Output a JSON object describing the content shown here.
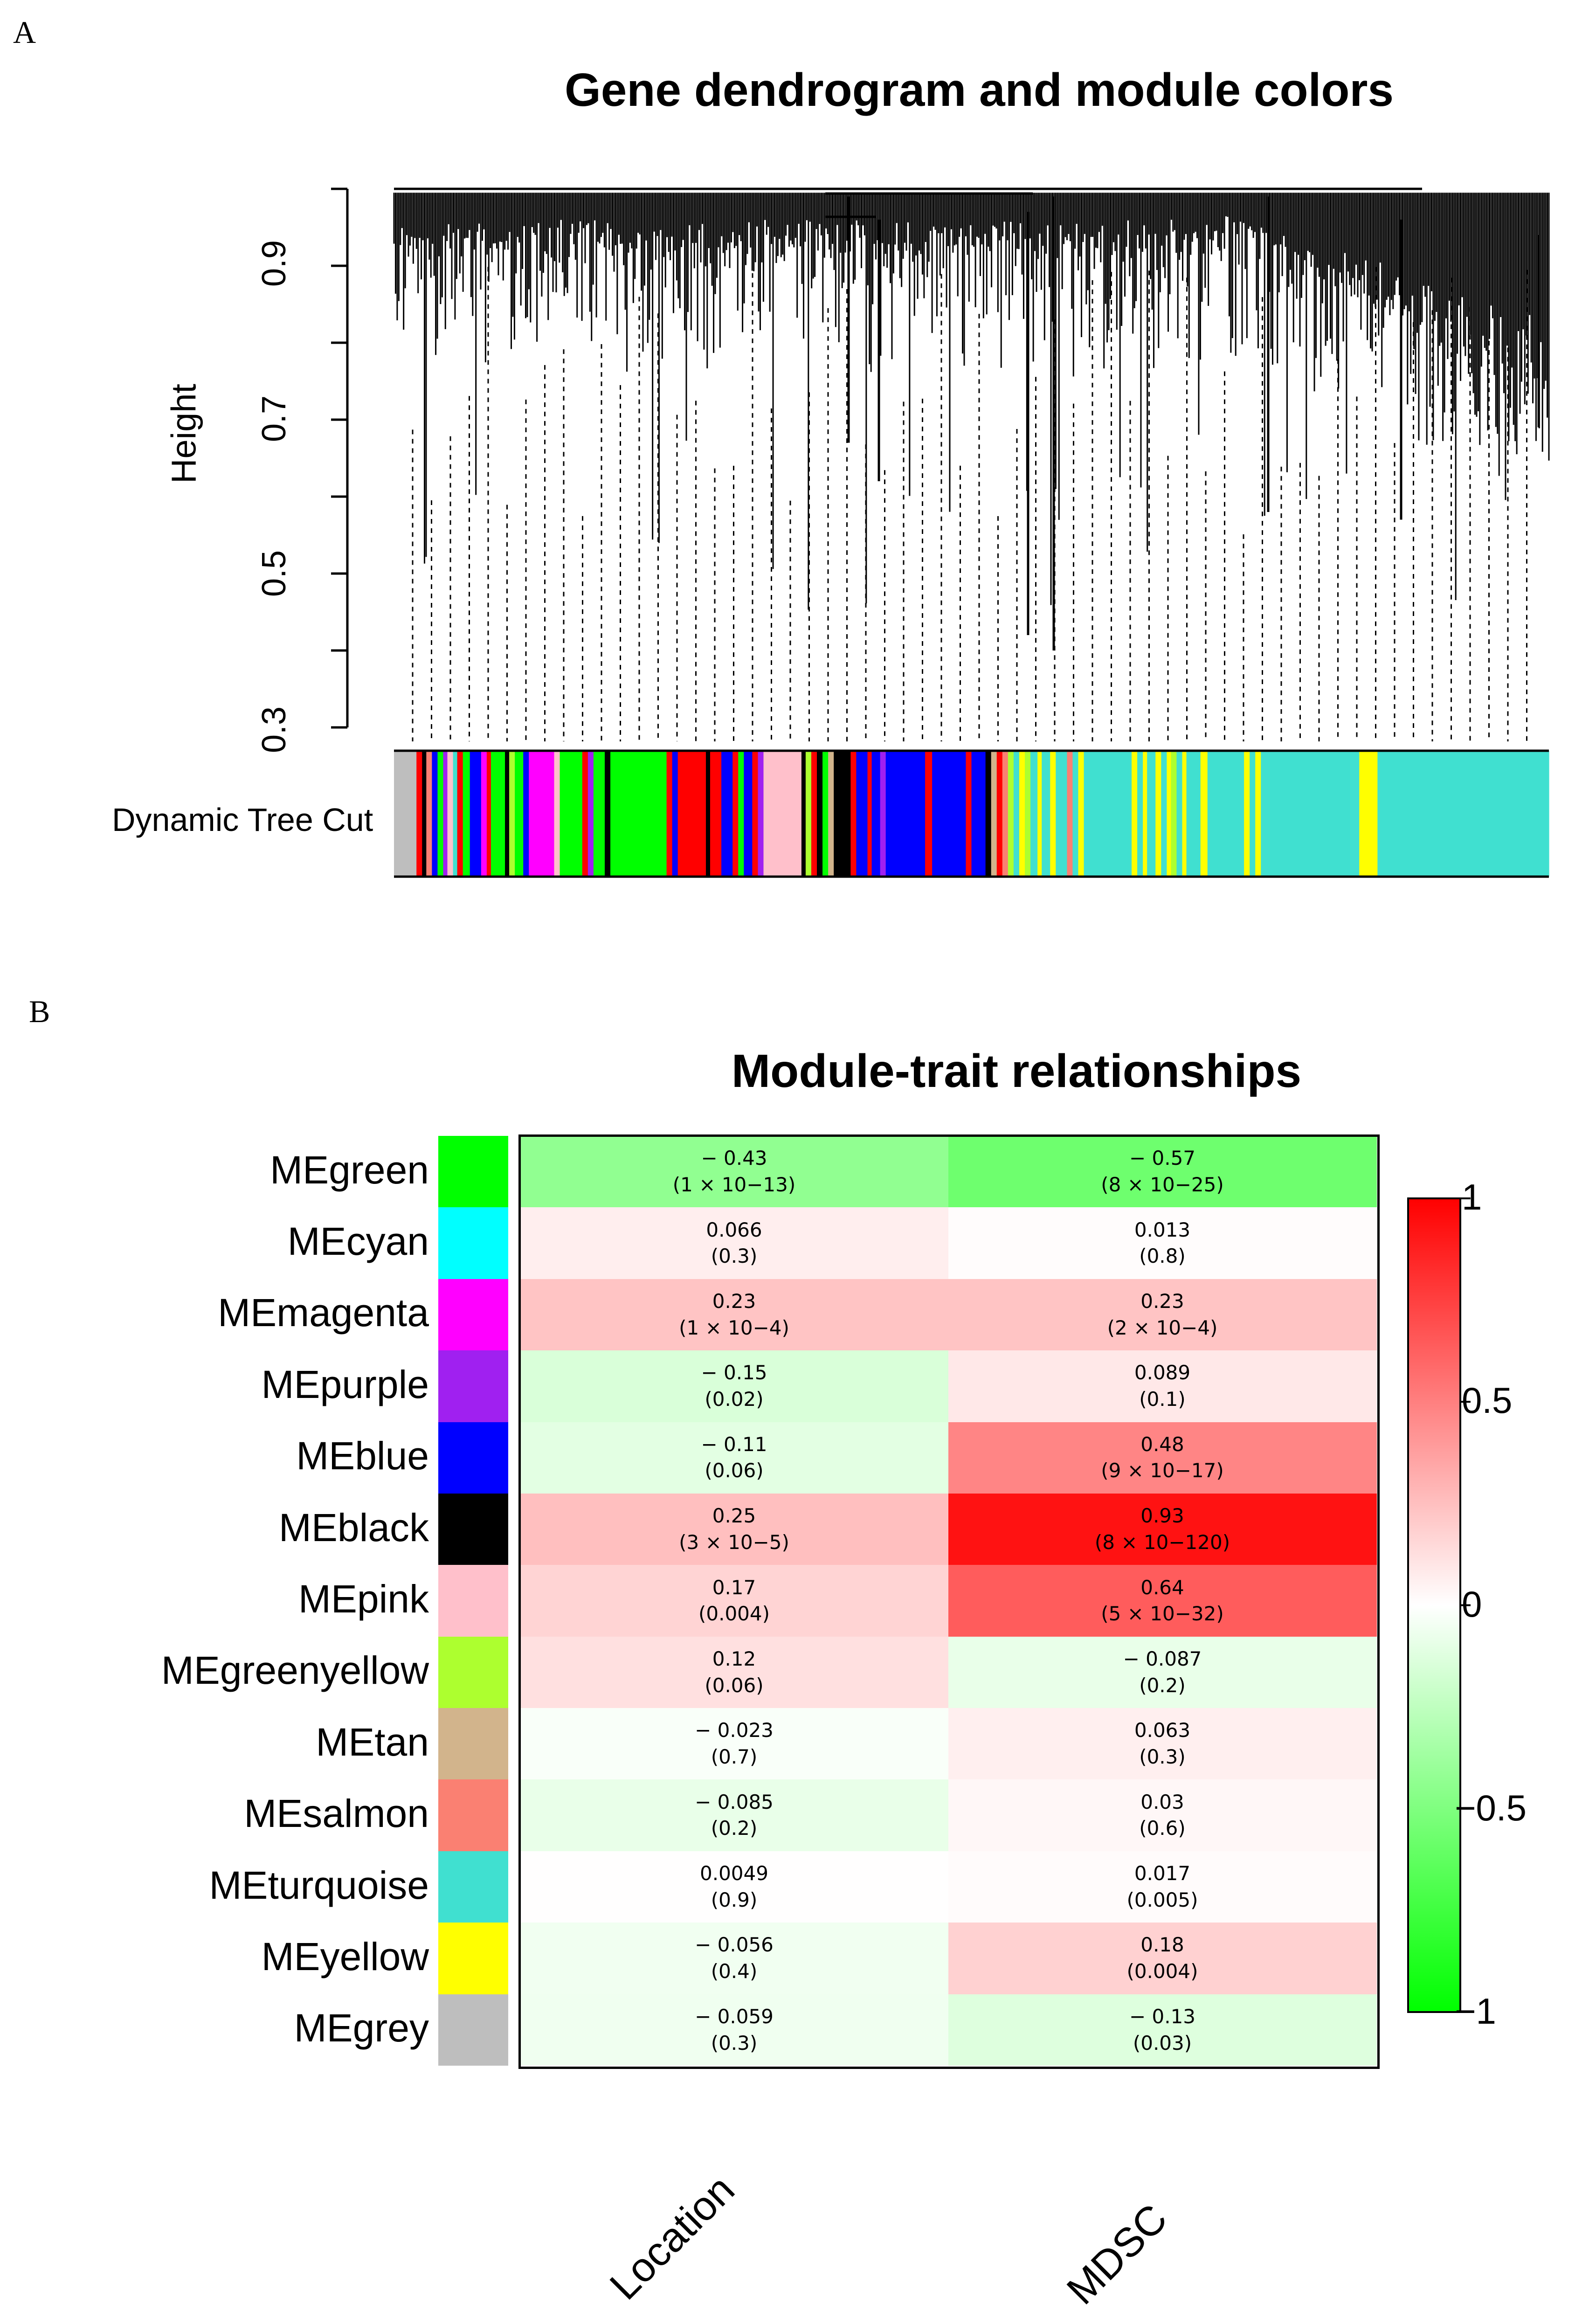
{
  "chart_data": [
    {
      "panel_label": "A",
      "type": "dendrogram",
      "title": "Gene dendrogram and module colors",
      "ylabel": "Height",
      "yticks": [
        0.3,
        0.5,
        0.7,
        0.9
      ],
      "ylim": [
        0.3,
        1.0
      ],
      "color_bar_label": "Dynamic Tree Cut",
      "color_bar_segments": [
        {
          "color": "#bebebe",
          "width": 0.016
        },
        {
          "color": "#ff0000",
          "width": 0.004
        },
        {
          "color": "#000000",
          "width": 0.003
        },
        {
          "color": "#fa8072",
          "width": 0.004
        },
        {
          "color": "#0000ff",
          "width": 0.004
        },
        {
          "color": "#00ff00",
          "width": 0.004
        },
        {
          "color": "#a020f0",
          "width": 0.003
        },
        {
          "color": "#ffc0cb",
          "width": 0.004
        },
        {
          "color": "#40e0d0",
          "width": 0.003
        },
        {
          "color": "#ff0000",
          "width": 0.004
        },
        {
          "color": "#00ff00",
          "width": 0.005
        },
        {
          "color": "#0000ff",
          "width": 0.008
        },
        {
          "color": "#ff00ff",
          "width": 0.004
        },
        {
          "color": "#ff0000",
          "width": 0.003
        },
        {
          "color": "#00ff00",
          "width": 0.01
        },
        {
          "color": "#000000",
          "width": 0.003
        },
        {
          "color": "#adff2f",
          "width": 0.004
        },
        {
          "color": "#00ff00",
          "width": 0.006
        },
        {
          "color": "#0000ff",
          "width": 0.004
        },
        {
          "color": "#ff00ff",
          "width": 0.018
        },
        {
          "color": "#ffc0cb",
          "width": 0.004
        },
        {
          "color": "#00ff00",
          "width": 0.016
        },
        {
          "color": "#ff0000",
          "width": 0.004
        },
        {
          "color": "#a020f0",
          "width": 0.004
        },
        {
          "color": "#00ff00",
          "width": 0.008
        },
        {
          "color": "#000000",
          "width": 0.004
        },
        {
          "color": "#00ff00",
          "width": 0.04
        },
        {
          "color": "#ff0000",
          "width": 0.004
        },
        {
          "color": "#0000ff",
          "width": 0.004
        },
        {
          "color": "#ff0000",
          "width": 0.02
        },
        {
          "color": "#000000",
          "width": 0.003
        },
        {
          "color": "#ff0000",
          "width": 0.008
        },
        {
          "color": "#0000ff",
          "width": 0.008
        },
        {
          "color": "#ff0000",
          "width": 0.004
        },
        {
          "color": "#00ff00",
          "width": 0.004
        },
        {
          "color": "#0000ff",
          "width": 0.006
        },
        {
          "color": "#ff0000",
          "width": 0.004
        },
        {
          "color": "#a020f0",
          "width": 0.004
        },
        {
          "color": "#ffc0cb",
          "width": 0.027
        },
        {
          "color": "#000000",
          "width": 0.003
        },
        {
          "color": "#adff2f",
          "width": 0.004
        },
        {
          "color": "#ff0000",
          "width": 0.004
        },
        {
          "color": "#000000",
          "width": 0.004
        },
        {
          "color": "#00ff00",
          "width": 0.004
        },
        {
          "color": "#d2b48c",
          "width": 0.004
        },
        {
          "color": "#000000",
          "width": 0.012
        },
        {
          "color": "#ff0000",
          "width": 0.004
        },
        {
          "color": "#0000ff",
          "width": 0.008
        },
        {
          "color": "#ff0000",
          "width": 0.003
        },
        {
          "color": "#0000ff",
          "width": 0.006
        },
        {
          "color": "#a020f0",
          "width": 0.004
        },
        {
          "color": "#0000ff",
          "width": 0.028
        },
        {
          "color": "#ff0000",
          "width": 0.005
        },
        {
          "color": "#0000ff",
          "width": 0.024
        },
        {
          "color": "#ff0000",
          "width": 0.004
        },
        {
          "color": "#0000ff",
          "width": 0.01
        },
        {
          "color": "#000000",
          "width": 0.004
        },
        {
          "color": "#d2b48c",
          "width": 0.004
        },
        {
          "color": "#ff0000",
          "width": 0.004
        },
        {
          "color": "#fa8072",
          "width": 0.004
        },
        {
          "color": "#adff2f",
          "width": 0.004
        },
        {
          "color": "#40e0d0",
          "width": 0.004
        },
        {
          "color": "#ffff00",
          "width": 0.004
        },
        {
          "color": "#adff2f",
          "width": 0.004
        },
        {
          "color": "#40e0d0",
          "width": 0.005
        },
        {
          "color": "#ffff00",
          "width": 0.003
        },
        {
          "color": "#40e0d0",
          "width": 0.006
        },
        {
          "color": "#ffff00",
          "width": 0.004
        },
        {
          "color": "#40e0d0",
          "width": 0.008
        },
        {
          "color": "#fa8072",
          "width": 0.004
        },
        {
          "color": "#40e0d0",
          "width": 0.004
        },
        {
          "color": "#ffff00",
          "width": 0.004
        },
        {
          "color": "#40e0d0",
          "width": 0.034
        },
        {
          "color": "#ffff00",
          "width": 0.004
        },
        {
          "color": "#40e0d0",
          "width": 0.004
        },
        {
          "color": "#ffff00",
          "width": 0.003
        },
        {
          "color": "#40e0d0",
          "width": 0.006
        },
        {
          "color": "#ffff00",
          "width": 0.004
        },
        {
          "color": "#40e0d0",
          "width": 0.004
        },
        {
          "color": "#ffff00",
          "width": 0.003
        },
        {
          "color": "#adff2f",
          "width": 0.004
        },
        {
          "color": "#40e0d0",
          "width": 0.004
        },
        {
          "color": "#ffff00",
          "width": 0.003
        },
        {
          "color": "#40e0d0",
          "width": 0.01
        },
        {
          "color": "#ffff00",
          "width": 0.005
        },
        {
          "color": "#40e0d0",
          "width": 0.026
        },
        {
          "color": "#ffff00",
          "width": 0.004
        },
        {
          "color": "#40e0d0",
          "width": 0.004
        },
        {
          "color": "#ffff00",
          "width": 0.004
        },
        {
          "color": "#40e0d0",
          "width": 0.07
        },
        {
          "color": "#ffff00",
          "width": 0.013
        },
        {
          "color": "#40e0d0",
          "width": 0.122
        }
      ]
    },
    {
      "panel_label": "B",
      "type": "heatmap",
      "title": "Module-trait relationships",
      "columns": [
        "Location",
        "MDSC"
      ],
      "rows": [
        {
          "name": "MEgreen",
          "swatch": "#00ff00",
          "values": [
            -0.43,
            -0.57
          ],
          "labels": [
            [
              "− 0.43",
              "(1 × 10−13)"
            ],
            [
              "− 0.57",
              "(8 × 10−25)"
            ]
          ]
        },
        {
          "name": "MEcyan",
          "swatch": "#00ffff",
          "values": [
            0.066,
            0.013
          ],
          "labels": [
            [
              "0.066",
              "(0.3)"
            ],
            [
              "0.013",
              "(0.8)"
            ]
          ]
        },
        {
          "name": "MEmagenta",
          "swatch": "#ff00ff",
          "values": [
            0.23,
            0.23
          ],
          "labels": [
            [
              "0.23",
              "(1 × 10−4)"
            ],
            [
              "0.23",
              "(2 × 10−4)"
            ]
          ]
        },
        {
          "name": "MEpurple",
          "swatch": "#a020f0",
          "values": [
            -0.15,
            0.089
          ],
          "labels": [
            [
              "− 0.15",
              "(0.02)"
            ],
            [
              "0.089",
              "(0.1)"
            ]
          ]
        },
        {
          "name": "MEblue",
          "swatch": "#0000ff",
          "values": [
            -0.11,
            0.48
          ],
          "labels": [
            [
              "− 0.11",
              "(0.06)"
            ],
            [
              "0.48",
              "(9 × 10−17)"
            ]
          ]
        },
        {
          "name": "MEblack",
          "swatch": "#000000",
          "values": [
            0.25,
            0.93
          ],
          "labels": [
            [
              "0.25",
              "(3 × 10−5)"
            ],
            [
              "0.93",
              "(8 × 10−120)"
            ]
          ]
        },
        {
          "name": "MEpink",
          "swatch": "#ffc0cb",
          "values": [
            0.17,
            0.64
          ],
          "labels": [
            [
              "0.17",
              "(0.004)"
            ],
            [
              "0.64",
              "(5 × 10−32)"
            ]
          ]
        },
        {
          "name": "MEgreenyellow",
          "swatch": "#adff2f",
          "values": [
            0.12,
            -0.087
          ],
          "labels": [
            [
              "0.12",
              "(0.06)"
            ],
            [
              "− 0.087",
              "(0.2)"
            ]
          ]
        },
        {
          "name": "MEtan",
          "swatch": "#d2b48c",
          "values": [
            -0.023,
            0.063
          ],
          "labels": [
            [
              "− 0.023",
              "(0.7)"
            ],
            [
              "0.063",
              "(0.3)"
            ]
          ]
        },
        {
          "name": "MEsalmon",
          "swatch": "#fa8072",
          "values": [
            -0.085,
            0.03
          ],
          "labels": [
            [
              "− 0.085",
              "(0.2)"
            ],
            [
              "0.03",
              "(0.6)"
            ]
          ]
        },
        {
          "name": "MEturquoise",
          "swatch": "#40e0d0",
          "values": [
            0.0049,
            0.017
          ],
          "labels": [
            [
              "0.0049",
              "(0.9)"
            ],
            [
              "0.017",
              "(0.005)"
            ]
          ]
        },
        {
          "name": "MEyellow",
          "swatch": "#ffff00",
          "values": [
            -0.056,
            0.18
          ],
          "labels": [
            [
              "− 0.056",
              "(0.4)"
            ],
            [
              "0.18",
              "(0.004)"
            ]
          ]
        },
        {
          "name": "MEgrey",
          "swatch": "#bebebe",
          "values": [
            -0.059,
            -0.13
          ],
          "labels": [
            [
              "− 0.059",
              "(0.3)"
            ],
            [
              "− 0.13",
              "(0.03)"
            ]
          ]
        }
      ],
      "colorbar": {
        "min": -1,
        "max": 1,
        "ticks": [
          "1",
          "0.5",
          "0",
          "−0.5",
          "−1"
        ],
        "low_color": "#00ff00",
        "mid_color": "#ffffff",
        "high_color": "#ff0000"
      }
    }
  ]
}
